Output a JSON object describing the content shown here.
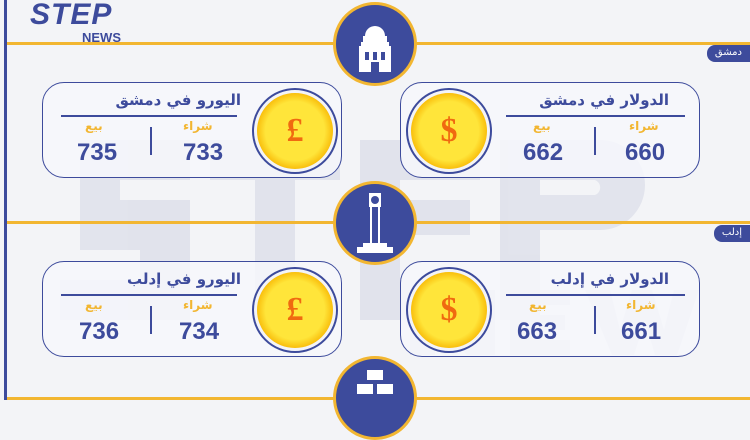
{
  "brand": {
    "logo_top": "STEP",
    "logo_bottom": "NEWS"
  },
  "colors": {
    "primary": "#3d4b9c",
    "accent": "#f2b631",
    "coin": "#ffd21f",
    "symbol": "#f06a10"
  },
  "sections": [
    {
      "city_tag": "دمشق",
      "icon": "mosque-dome-icon",
      "dollar": {
        "title": "الدولار في دمشق",
        "buy_label": "شراء",
        "sell_label": "بيع",
        "buy": "660",
        "sell": "662",
        "symbol": "$"
      },
      "euro": {
        "title": "اليورو في دمشق",
        "buy_label": "شراء",
        "sell_label": "بيع",
        "buy": "733",
        "sell": "735",
        "symbol": "£"
      }
    },
    {
      "city_tag": "إدلب",
      "icon": "clock-tower-icon",
      "dollar": {
        "title": "الدولار في إدلب",
        "buy_label": "شراء",
        "sell_label": "بيع",
        "buy": "661",
        "sell": "663",
        "symbol": "$"
      },
      "euro": {
        "title": "اليورو في إدلب",
        "buy_label": "شراء",
        "sell_label": "بيع",
        "buy": "734",
        "sell": "736",
        "symbol": "£"
      }
    }
  ],
  "bottom_icon": "gold-bars-icon"
}
